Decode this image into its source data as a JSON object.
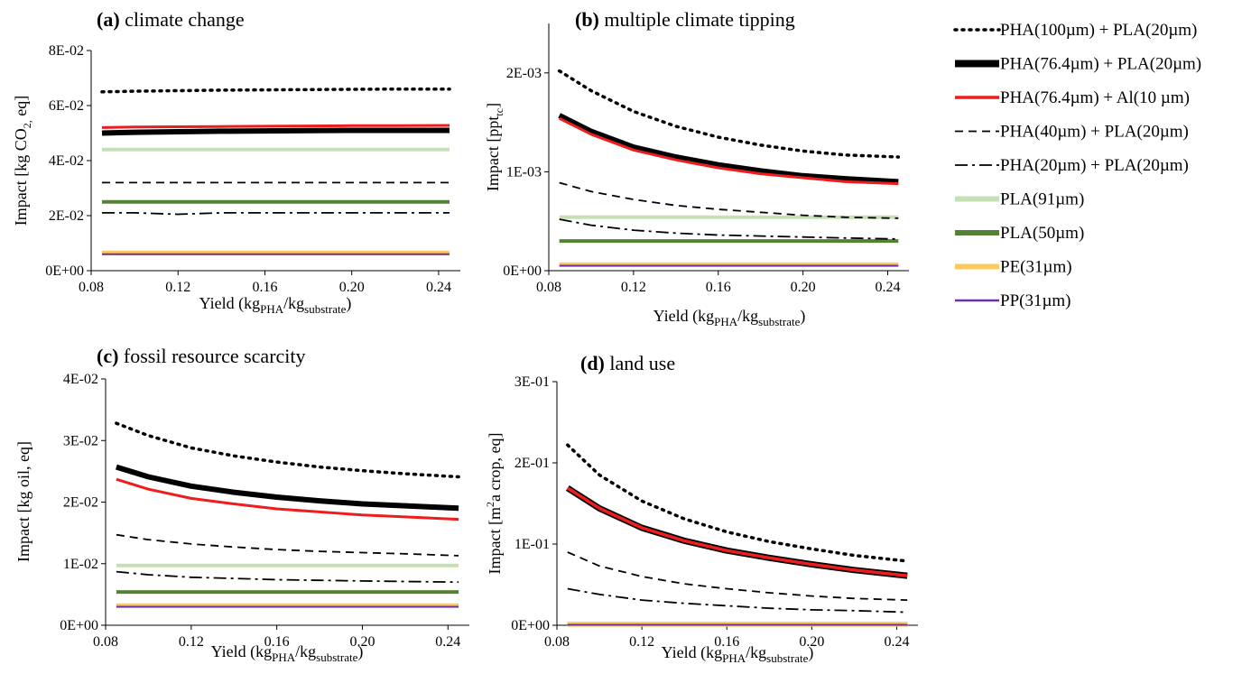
{
  "series_styles": [
    {
      "name": "PHA(100µm) + PLA(20µm)",
      "color": "#000000",
      "style": "dotted-heavy"
    },
    {
      "name": "PHA(76.4µm) + PLA(20µm)",
      "color": "#000000",
      "style": "solid-thick"
    },
    {
      "name": "PHA(76.4µm) + Al(10 µm)",
      "color": "#ee1c1c",
      "style": "solid"
    },
    {
      "name": "PHA(40µm) + PLA(20µm)",
      "color": "#000000",
      "style": "dashed"
    },
    {
      "name": "PHA(20µm) + PLA(20µm)",
      "color": "#000000",
      "style": "dash-dot"
    },
    {
      "name": "PLA(91µm)",
      "color": "#c5e0b4",
      "style": "solid-thick"
    },
    {
      "name": "PLA(50µm)",
      "color": "#548235",
      "style": "solid-thick"
    },
    {
      "name": "PE(31µm)",
      "color": "#ffc85a",
      "style": "solid-thick"
    },
    {
      "name": "PP(31µm)",
      "color": "#7030a0",
      "style": "solid"
    }
  ],
  "chart_data": [
    {
      "type": "line",
      "panel_letter": "(a)",
      "title": "climate change",
      "ylabel": "Impact [kg CO",
      "ylabel_sub": "2,",
      "ylabel_end": " eq]",
      "xlabel": "Yield (kg",
      "xlabel_sub1": "PHA",
      "xlabel_mid": "/kg",
      "xlabel_sub2": "substrate",
      "xlabel_end": ")",
      "xlim": [
        0.08,
        0.25
      ],
      "ylim": [
        0,
        0.08
      ],
      "xticks": [
        0.08,
        0.12,
        0.16,
        0.2,
        0.24
      ],
      "xtick_labels": [
        "0.08",
        "0.12",
        "0.16",
        "0.20",
        "0.24"
      ],
      "yticks": [
        0,
        0.02,
        0.04,
        0.06,
        0.08
      ],
      "ytick_labels": [
        "0E+00",
        "2E-02",
        "4E-02",
        "6E-02",
        "8E-02"
      ],
      "x": [
        0.085,
        0.1,
        0.12,
        0.14,
        0.16,
        0.18,
        0.2,
        0.22,
        0.245
      ],
      "series": [
        {
          "values": [
            0.065,
            0.0652,
            0.0654,
            0.0656,
            0.0657,
            0.0658,
            0.0659,
            0.066,
            0.066
          ]
        },
        {
          "values": [
            0.05,
            0.0503,
            0.0505,
            0.0507,
            0.0508,
            0.0509,
            0.051,
            0.051,
            0.051
          ]
        },
        {
          "values": [
            0.052,
            0.0522,
            0.0523,
            0.0524,
            0.0525,
            0.0526,
            0.0527,
            0.0527,
            0.0528
          ]
        },
        {
          "values": [
            0.032,
            0.032,
            0.032,
            0.032,
            0.032,
            0.032,
            0.032,
            0.032,
            0.032
          ]
        },
        {
          "values": [
            0.021,
            0.021,
            0.0205,
            0.021,
            0.021,
            0.021,
            0.021,
            0.021,
            0.021
          ]
        },
        {
          "values": [
            0.044,
            0.044,
            0.044,
            0.044,
            0.044,
            0.044,
            0.044,
            0.044,
            0.044
          ]
        },
        {
          "values": [
            0.025,
            0.025,
            0.025,
            0.025,
            0.025,
            0.025,
            0.025,
            0.025,
            0.025
          ]
        },
        {
          "values": [
            0.0065,
            0.0065,
            0.0065,
            0.0065,
            0.0065,
            0.0065,
            0.0065,
            0.0065,
            0.0065
          ]
        },
        {
          "values": [
            0.006,
            0.006,
            0.006,
            0.006,
            0.006,
            0.006,
            0.006,
            0.006,
            0.006
          ]
        }
      ]
    },
    {
      "type": "line",
      "panel_letter": "(b)",
      "title": "multiple climate tipping",
      "ylabel": "Impact [ppt",
      "ylabel_sub": "tc",
      "ylabel_end": "]",
      "xlabel": "Yield (kg",
      "xlabel_sub1": "PHA",
      "xlabel_mid": "/kg",
      "xlabel_sub2": "substrate",
      "xlabel_end": ")",
      "xlim": [
        0.08,
        0.25
      ],
      "ylim": [
        0,
        0.0025
      ],
      "xticks": [
        0.08,
        0.12,
        0.16,
        0.2,
        0.24
      ],
      "xtick_labels": [
        "0.08",
        "0.12",
        "0.16",
        "0.20",
        "0.24"
      ],
      "yticks": [
        0,
        0.001,
        0.002
      ],
      "ytick_labels": [
        "0E+00",
        "1E-03",
        "2E-03"
      ],
      "x": [
        0.085,
        0.1,
        0.12,
        0.14,
        0.16,
        0.18,
        0.2,
        0.22,
        0.245
      ],
      "series": [
        {
          "values": [
            0.00202,
            0.00182,
            0.00161,
            0.00146,
            0.00135,
            0.00127,
            0.00121,
            0.00117,
            0.00115
          ]
        },
        {
          "values": [
            0.00157,
            0.00141,
            0.00125,
            0.00115,
            0.00107,
            0.00101,
            0.00096,
            0.00093,
            0.0009
          ]
        },
        {
          "values": [
            0.00154,
            0.00138,
            0.00122,
            0.00112,
            0.00104,
            0.00098,
            0.00094,
            0.0009,
            0.00088
          ]
        },
        {
          "values": [
            0.00089,
            0.0008,
            0.00072,
            0.00066,
            0.00062,
            0.00059,
            0.00056,
            0.00054,
            0.00053
          ]
        },
        {
          "values": [
            0.00052,
            0.00046,
            0.00041,
            0.00038,
            0.00036,
            0.00035,
            0.00034,
            0.00033,
            0.00032
          ]
        },
        {
          "values": [
            0.00054,
            0.00054,
            0.00054,
            0.00054,
            0.00054,
            0.00054,
            0.00054,
            0.00054,
            0.00054
          ]
        },
        {
          "values": [
            0.0003,
            0.0003,
            0.0003,
            0.0003,
            0.0003,
            0.0003,
            0.0003,
            0.0003,
            0.0003
          ]
        },
        {
          "values": [
            6e-05,
            6e-05,
            6e-05,
            6e-05,
            6e-05,
            6e-05,
            6e-05,
            6e-05,
            6e-05
          ]
        },
        {
          "values": [
            5e-05,
            5e-05,
            5e-05,
            5e-05,
            5e-05,
            5e-05,
            5e-05,
            5e-05,
            5e-05
          ]
        }
      ]
    },
    {
      "type": "line",
      "panel_letter": "(c)",
      "title": "fossil resource scarcity",
      "ylabel": "Impact [kg oil, eq]",
      "ylabel_sub": "",
      "ylabel_end": "",
      "xlabel": "Yield (kg",
      "xlabel_sub1": "PHA",
      "xlabel_mid": "/kg",
      "xlabel_sub2": "substrate",
      "xlabel_end": ")",
      "xlim": [
        0.08,
        0.25
      ],
      "ylim": [
        0,
        0.04
      ],
      "xticks": [
        0.08,
        0.12,
        0.16,
        0.2,
        0.24
      ],
      "xtick_labels": [
        "0.08",
        "0.12",
        "0.16",
        "0.20",
        "0.24"
      ],
      "yticks": [
        0,
        0.01,
        0.02,
        0.03,
        0.04
      ],
      "ytick_labels": [
        "0E+00",
        "1E-02",
        "2E-02",
        "3E-02",
        "4E-02"
      ],
      "x": [
        0.085,
        0.1,
        0.12,
        0.14,
        0.16,
        0.18,
        0.2,
        0.22,
        0.245
      ],
      "series": [
        {
          "values": [
            0.0328,
            0.0308,
            0.0288,
            0.0275,
            0.0265,
            0.0257,
            0.0251,
            0.0246,
            0.0241
          ]
        },
        {
          "values": [
            0.0257,
            0.0241,
            0.0226,
            0.0216,
            0.0208,
            0.0202,
            0.0197,
            0.0194,
            0.019
          ]
        },
        {
          "values": [
            0.0237,
            0.0221,
            0.0206,
            0.0197,
            0.0189,
            0.0184,
            0.0179,
            0.0176,
            0.0172
          ]
        },
        {
          "values": [
            0.0147,
            0.0139,
            0.0132,
            0.0127,
            0.0123,
            0.012,
            0.0118,
            0.0116,
            0.0113
          ]
        },
        {
          "values": [
            0.0087,
            0.0082,
            0.0078,
            0.0076,
            0.0074,
            0.0073,
            0.0072,
            0.0071,
            0.007
          ]
        },
        {
          "values": [
            0.0097,
            0.0097,
            0.0097,
            0.0097,
            0.0097,
            0.0097,
            0.0097,
            0.0097,
            0.0097
          ]
        },
        {
          "values": [
            0.0054,
            0.0054,
            0.0054,
            0.0054,
            0.0054,
            0.0054,
            0.0054,
            0.0054,
            0.0054
          ]
        },
        {
          "values": [
            0.0032,
            0.0032,
            0.0032,
            0.0032,
            0.0032,
            0.0032,
            0.0032,
            0.0032,
            0.0032
          ]
        },
        {
          "values": [
            0.003,
            0.003,
            0.003,
            0.003,
            0.003,
            0.003,
            0.003,
            0.003,
            0.003
          ]
        }
      ]
    },
    {
      "type": "line",
      "panel_letter": "(d)",
      "title": "land use",
      "ylabel": "Impact [m",
      "ylabel_sub": "2",
      "ylabel_end": "a crop, eq]",
      "ylabel_sub_is_sup": true,
      "xlabel": "Yield (kg",
      "xlabel_sub1": "PHA",
      "xlabel_mid": "/kg",
      "xlabel_sub2": "substrate",
      "xlabel_end": ")",
      "xlim": [
        0.08,
        0.25
      ],
      "ylim": [
        0,
        0.3
      ],
      "xticks": [
        0.08,
        0.12,
        0.16,
        0.2,
        0.24
      ],
      "xtick_labels": [
        "0.08",
        "0.12",
        "0.16",
        "0.20",
        "0.24"
      ],
      "yticks": [
        0,
        0.1,
        0.2,
        0.3
      ],
      "ytick_labels": [
        "0E+00",
        "1E-01",
        "2E-01",
        "3E-01"
      ],
      "x": [
        0.085,
        0.1,
        0.12,
        0.14,
        0.16,
        0.18,
        0.2,
        0.22,
        0.245
      ],
      "series": [
        {
          "values": [
            0.222,
            0.185,
            0.153,
            0.131,
            0.115,
            0.103,
            0.094,
            0.086,
            0.079
          ]
        },
        {
          "values": [
            0.169,
            0.144,
            0.12,
            0.104,
            0.092,
            0.083,
            0.075,
            0.068,
            0.061
          ]
        },
        {
          "values": [
            0.169,
            0.144,
            0.12,
            0.104,
            0.092,
            0.083,
            0.075,
            0.068,
            0.061
          ]
        },
        {
          "values": [
            0.09,
            0.073,
            0.06,
            0.051,
            0.045,
            0.04,
            0.036,
            0.033,
            0.031
          ]
        },
        {
          "values": [
            0.045,
            0.038,
            0.031,
            0.027,
            0.024,
            0.021,
            0.019,
            0.018,
            0.016
          ]
        },
        {
          "values": [
            0.002,
            0.002,
            0.002,
            0.002,
            0.002,
            0.002,
            0.002,
            0.002,
            0.002
          ]
        },
        {
          "values": [
            0.0015,
            0.0015,
            0.0015,
            0.0015,
            0.0015,
            0.0015,
            0.0015,
            0.0015,
            0.0015
          ]
        },
        {
          "values": [
            0.001,
            0.001,
            0.001,
            0.001,
            0.001,
            0.001,
            0.001,
            0.001,
            0.001
          ]
        },
        {
          "values": [
            0.0005,
            0.0005,
            0.0005,
            0.0005,
            0.0005,
            0.0005,
            0.0005,
            0.0005,
            0.0005
          ]
        }
      ]
    }
  ]
}
